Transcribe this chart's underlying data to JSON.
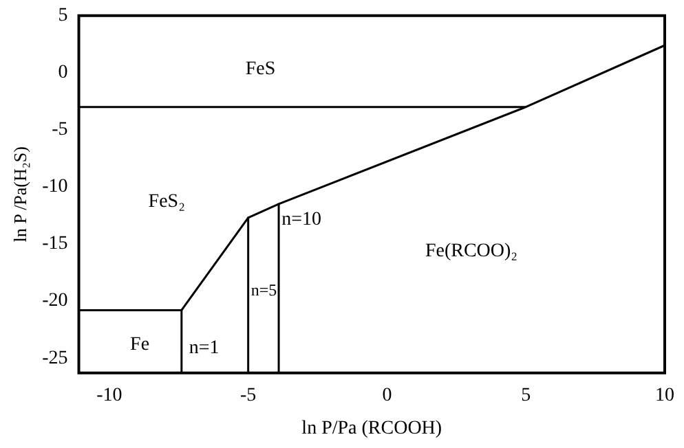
{
  "chart_data": {
    "type": "line",
    "xlabel": "ln P/Pa (RCOOH)",
    "ylabel": "ln P /Pa(H₂S)",
    "xlim": [
      -11.1,
      10
    ],
    "ylim": [
      -26.3,
      5
    ],
    "xticks": [
      -10,
      -5,
      0,
      5,
      10
    ],
    "yticks": [
      -25,
      -20,
      -15,
      -10,
      -5,
      0,
      5
    ],
    "grid": false,
    "legend": false,
    "marker": "none",
    "line_style": "solid",
    "series": [
      {
        "color": "#000000",
        "x": [
          -11.1,
          5
        ],
        "values": [
          -3,
          -3
        ]
      },
      {
        "color": "#000000",
        "x": [
          -11.1,
          -7.4,
          -5,
          -3.9,
          5,
          10
        ],
        "values": [
          -20.8,
          -20.8,
          -12.7,
          -11.5,
          -3,
          2.4
        ]
      },
      {
        "color": "#000000",
        "x": [
          -7.4,
          -7.4
        ],
        "values": [
          -20.8,
          -26.3
        ]
      },
      {
        "color": "#000000",
        "x": [
          -5,
          -5
        ],
        "values": [
          -12.7,
          -26.3
        ]
      },
      {
        "color": "#000000",
        "x": [
          -3.9,
          -3.9
        ],
        "values": [
          -11.5,
          -26.3
        ]
      }
    ],
    "annotations": [
      "FeS",
      "FeS₂",
      "n=10",
      "n=5",
      "Fe(RCOO)₂",
      "Fe",
      "n=1"
    ]
  }
}
